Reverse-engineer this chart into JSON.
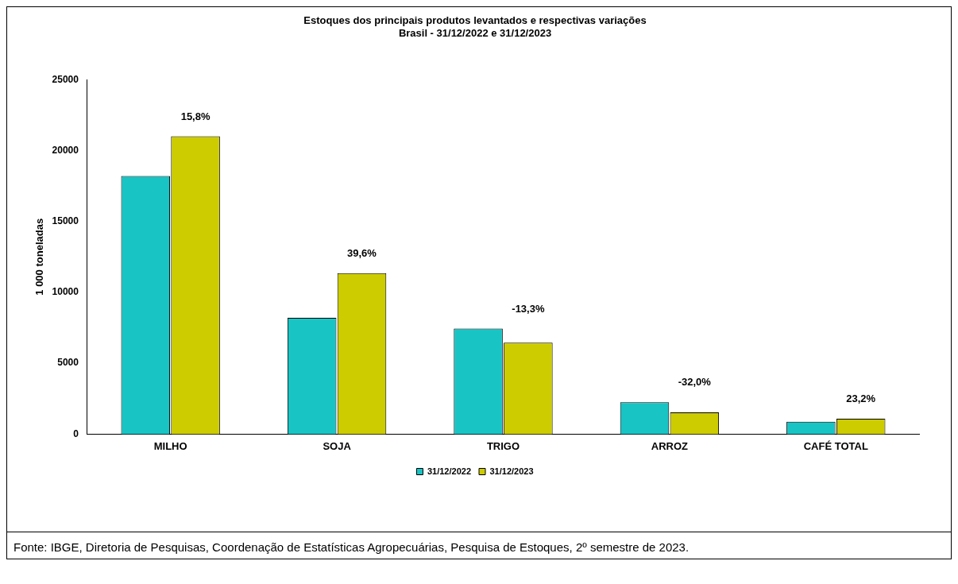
{
  "chart_data": {
    "type": "bar",
    "title": "Estoques dos principais produtos levantados e respectivas variações\nBrasil - 31/12/2022 e 31/12/2023",
    "ylabel": "1 000 toneladas",
    "categories": [
      "MILHO",
      "SOJA",
      "TRIGO",
      "ARROZ",
      "CAFÉ TOTAL"
    ],
    "series": [
      {
        "name": "31/12/2022",
        "color": "#19c4c4",
        "values": [
          18200,
          8200,
          7450,
          2250,
          880
        ]
      },
      {
        "name": "31/12/2023",
        "color": "#cccc00",
        "values": [
          21000,
          11350,
          6450,
          1530,
          1080
        ]
      }
    ],
    "ylim": [
      0,
      25000
    ],
    "yticks": [
      0,
      5000,
      10000,
      15000,
      20000,
      25000
    ],
    "grid": false,
    "legend": "bottom",
    "annotations": [
      {
        "text": "15,8%",
        "x": "MILHO",
        "y": 21000
      },
      {
        "text": "39,6%",
        "x": "SOJA",
        "y": 11350
      },
      {
        "text": "-13,3%",
        "x": "TRIGO",
        "y": 7450
      },
      {
        "text": "-32,0%",
        "x": "ARROZ",
        "y": 2250
      },
      {
        "text": "23,2%",
        "x": "CAFÉ TOTAL",
        "y": 1080
      },
      "Fonte: IBGE, Diretoria de Pesquisas, Coordenação de Estatísticas Agropecuárias, Pesquisa de Estoques, 2º semestre de 2023."
    ]
  }
}
